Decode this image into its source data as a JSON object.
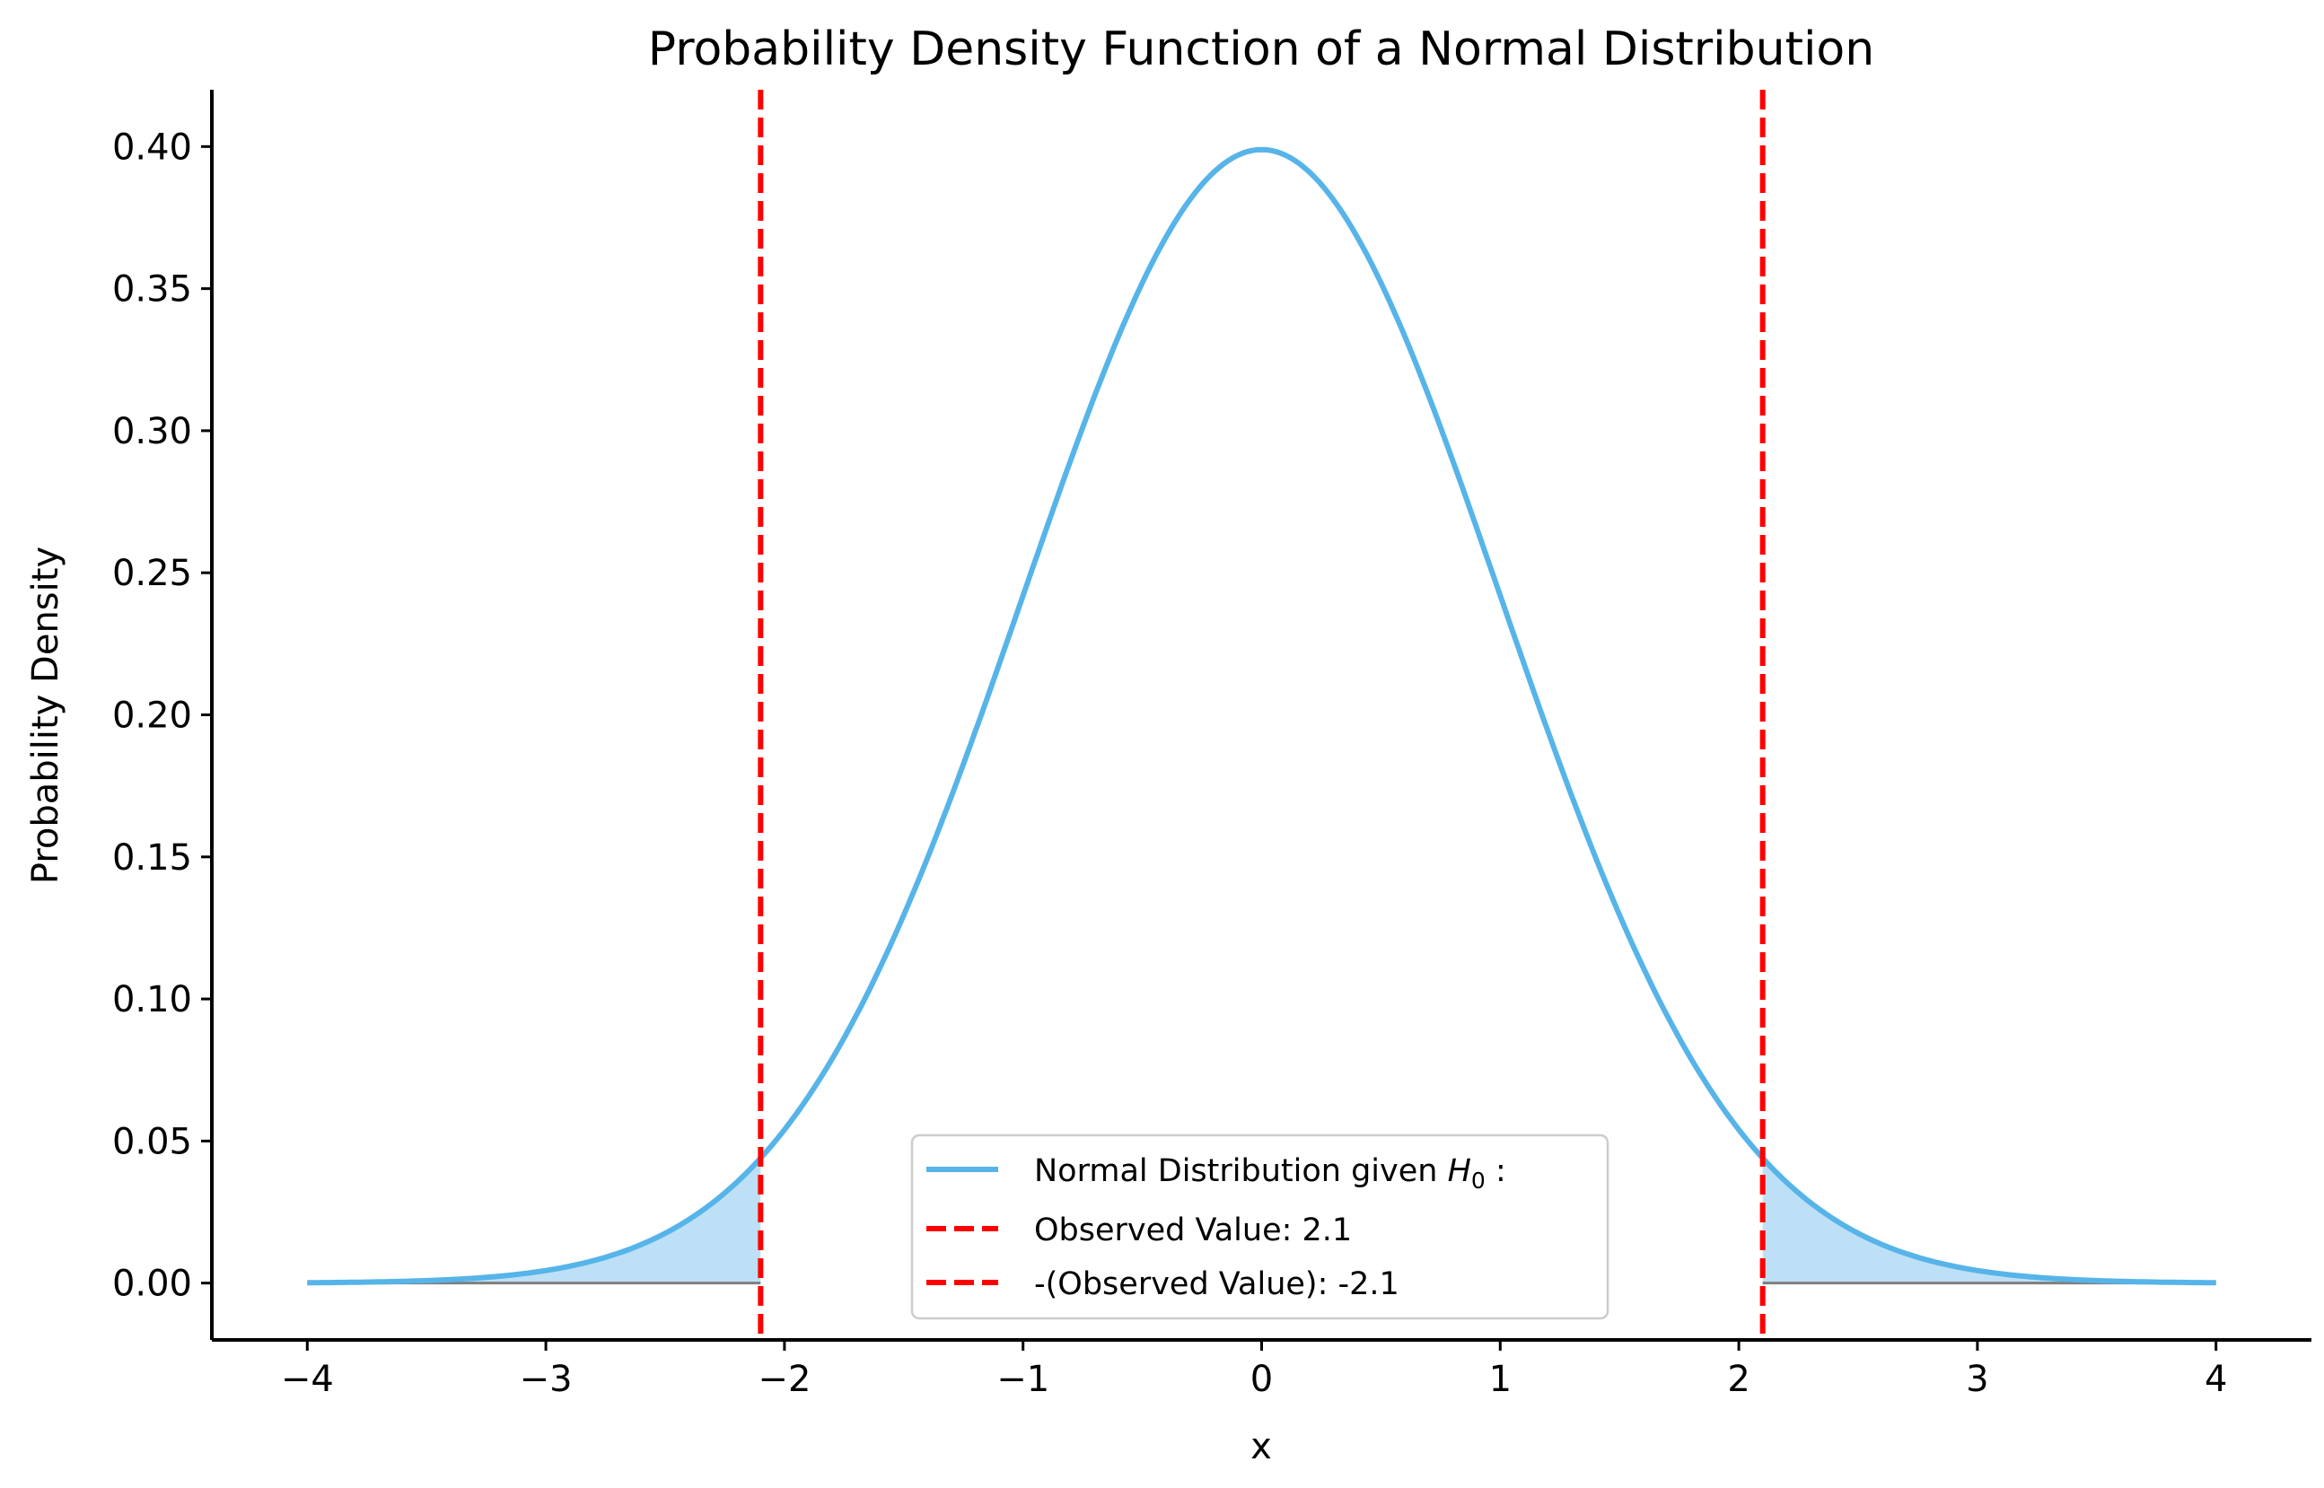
{
  "chart_data": {
    "type": "line",
    "title": "Probability Density Function of a Normal Distribution",
    "xlabel": "x",
    "ylabel": "Probability Density",
    "xlim": [
      -4.4,
      4.4
    ],
    "ylim": [
      -0.02,
      0.42
    ],
    "x_ticks": [
      -4,
      -3,
      -2,
      -1,
      0,
      1,
      2,
      3,
      4
    ],
    "x_tick_labels": [
      "−4",
      "−3",
      "−2",
      "−1",
      "0",
      "1",
      "2",
      "3",
      "4"
    ],
    "y_ticks": [
      0.0,
      0.05,
      0.1,
      0.15,
      0.2,
      0.25,
      0.3,
      0.35,
      0.4
    ],
    "y_tick_labels": [
      "0.00",
      "0.05",
      "0.10",
      "0.15",
      "0.20",
      "0.25",
      "0.30",
      "0.35",
      "0.40"
    ],
    "grid": false,
    "legend_position": "lower-center",
    "series": [
      {
        "name": "Normal Distribution given H₀ :",
        "legend_label": "Normal Distribution given",
        "legend_math": "H",
        "legend_math_sub": "0",
        "legend_suffix": " :",
        "kind": "curve",
        "color": "#56b4e9",
        "x_range": [
          -4,
          4
        ],
        "mean": 0,
        "sd": 1,
        "peak": 0.3989
      },
      {
        "name": "Observed Value: 2.1",
        "kind": "vline",
        "x": 2.1,
        "color": "#ff0000",
        "dashed": true
      },
      {
        "name": "-(Observed Value): -2.1",
        "kind": "vline",
        "x": -2.1,
        "color": "#ff0000",
        "dashed": true
      }
    ],
    "shaded_regions": [
      {
        "from": -4,
        "to": -2.1,
        "color": "#bde0f6"
      },
      {
        "from": 2.1,
        "to": 4,
        "color": "#bde0f6"
      }
    ]
  }
}
